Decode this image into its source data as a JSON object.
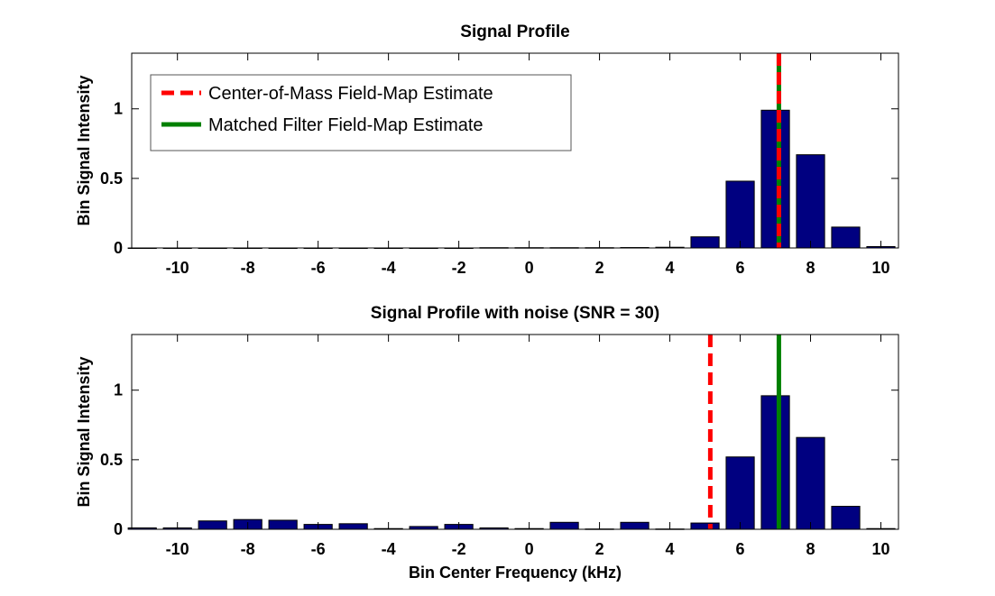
{
  "chart_data": [
    {
      "type": "bar",
      "title": "Signal Profile",
      "xlabel": "",
      "ylabel": "Bin Signal Intensity",
      "xlim": [
        -11.3,
        10.5
      ],
      "ylim": [
        0,
        1.4
      ],
      "x_ticks": [
        -10,
        -8,
        -6,
        -4,
        -2,
        0,
        2,
        4,
        6,
        8,
        10
      ],
      "y_ticks": [
        0,
        0.5,
        1
      ],
      "x_tick_labels": [
        "-10",
        "-8",
        "-6",
        "-4",
        "-2",
        "0",
        "2",
        "4",
        "6",
        "8",
        "10"
      ],
      "y_tick_labels": [
        "0",
        "0.5",
        "1"
      ],
      "bar_color": "#000080",
      "x": [
        -11,
        -10,
        -9,
        -8,
        -7,
        -6,
        -5,
        -4,
        -3,
        -2,
        -1,
        0,
        1,
        2,
        3,
        4,
        5,
        6,
        7,
        8,
        9,
        10
      ],
      "values": [
        0,
        0,
        0,
        0,
        0,
        0,
        0,
        0,
        0,
        0,
        0.002,
        0.002,
        0.002,
        0.002,
        0.003,
        0.005,
        0.08,
        0.48,
        0.99,
        0.67,
        0.15,
        0.01
      ],
      "vlines": [
        {
          "name": "Center-of-Mass Field-Map Estimate",
          "x": 7.1,
          "color": "#ff0000",
          "style": "dashed"
        },
        {
          "name": "Matched Filter Field-Map Estimate",
          "x": 7.1,
          "color": "#008000",
          "style": "solid"
        }
      ],
      "legend": {
        "placement": "top-left",
        "entries": [
          {
            "label": "Center-of-Mass Field-Map Estimate",
            "color": "#ff0000",
            "style": "dashed"
          },
          {
            "label": "Matched Filter Field-Map Estimate",
            "color": "#008000",
            "style": "solid"
          }
        ]
      }
    },
    {
      "type": "bar",
      "title": "Signal Profile with noise (SNR = 30)",
      "xlabel": "Bin Center Frequency (kHz)",
      "ylabel": "Bin Signal Intensity",
      "xlim": [
        -11.3,
        10.5
      ],
      "ylim": [
        0,
        1.4
      ],
      "x_ticks": [
        -10,
        -8,
        -6,
        -4,
        -2,
        0,
        2,
        4,
        6,
        8,
        10
      ],
      "y_ticks": [
        0,
        0.5,
        1
      ],
      "x_tick_labels": [
        "-10",
        "-8",
        "-6",
        "-4",
        "-2",
        "0",
        "2",
        "4",
        "6",
        "8",
        "10"
      ],
      "y_tick_labels": [
        "0",
        "0.5",
        "1"
      ],
      "bar_color": "#000080",
      "x": [
        -11,
        -10,
        -9,
        -8,
        -7,
        -6,
        -5,
        -4,
        -3,
        -2,
        -1,
        0,
        1,
        2,
        3,
        4,
        5,
        6,
        7,
        8,
        9,
        10
      ],
      "values": [
        0.01,
        0.01,
        0.06,
        0.07,
        0.065,
        0.035,
        0.04,
        0.005,
        0.02,
        0.035,
        0.01,
        0.005,
        0.05,
        0.002,
        0.05,
        0.002,
        0.045,
        0.52,
        0.96,
        0.66,
        0.165,
        0.005
      ],
      "vlines": [
        {
          "name": "Center-of-Mass Field-Map Estimate",
          "x": 5.15,
          "color": "#ff0000",
          "style": "dashed"
        },
        {
          "name": "Matched Filter Field-Map Estimate",
          "x": 7.1,
          "color": "#008000",
          "style": "solid"
        }
      ]
    }
  ]
}
